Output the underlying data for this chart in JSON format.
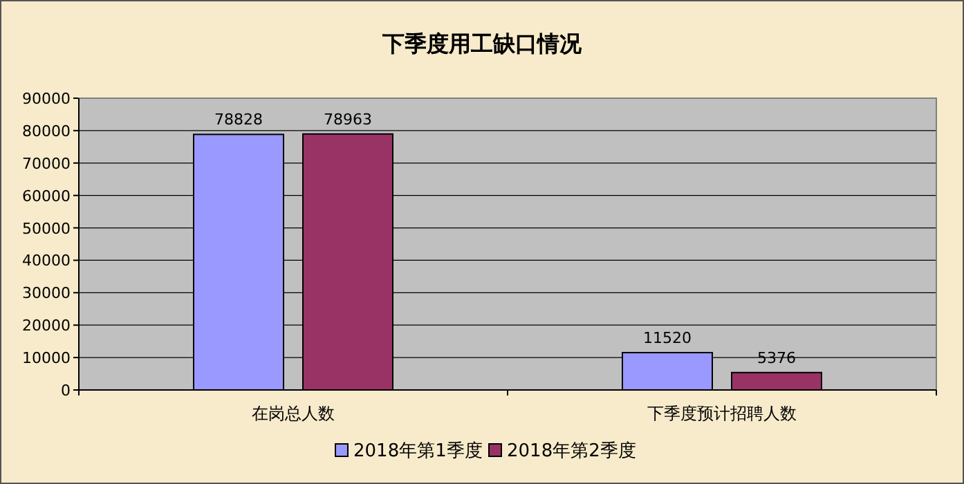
{
  "chart_data": {
    "type": "bar",
    "title": "下季度用工缺口情况",
    "categories": [
      "在岗总人数",
      "下季度预计招聘人数"
    ],
    "series": [
      {
        "name": "2018年第1季度",
        "color": "#9999ff",
        "values": [
          78828,
          11520
        ]
      },
      {
        "name": "2018年第2季度",
        "color": "#993366",
        "values": [
          78963,
          5376
        ]
      }
    ],
    "ylim": [
      0,
      90000
    ],
    "yticks": [
      0,
      10000,
      20000,
      30000,
      40000,
      50000,
      60000,
      70000,
      80000,
      90000
    ],
    "grid": "y",
    "data_labels": true,
    "legend": "bottom"
  }
}
